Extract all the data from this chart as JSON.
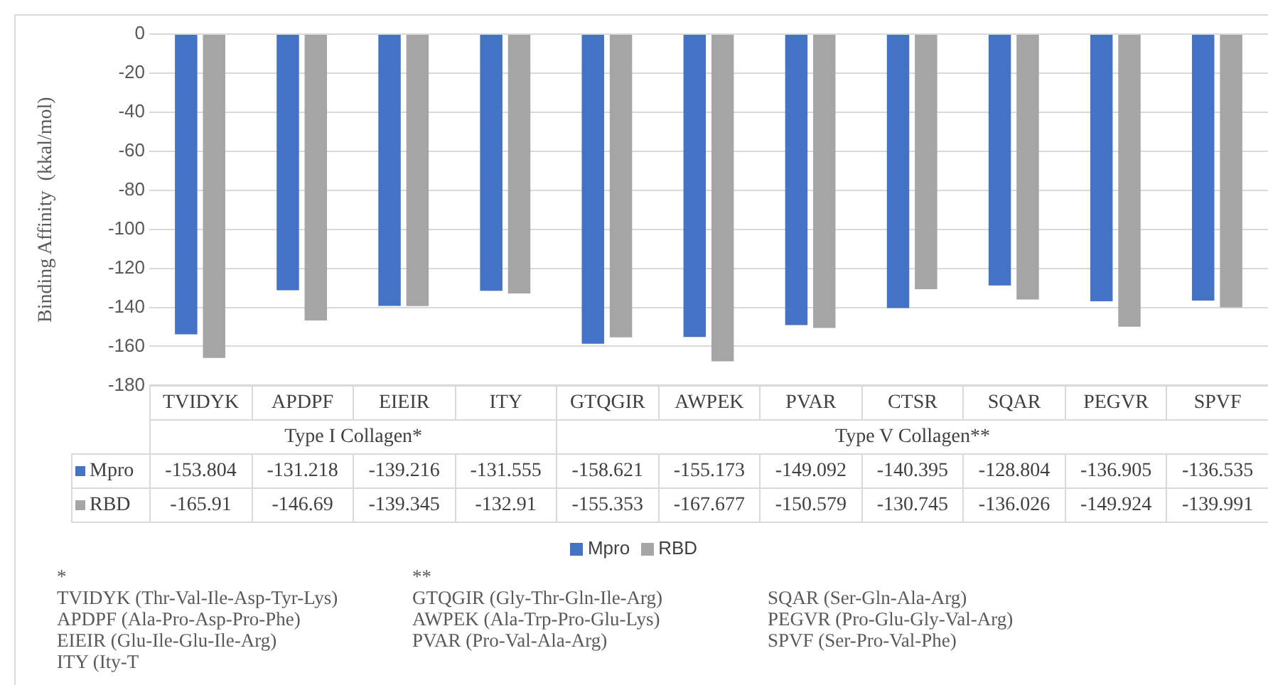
{
  "chart_data": {
    "type": "bar",
    "ylabel": "Binding Affinity  (kkal/mol)",
    "categories": [
      "TVIDYK",
      "APDPF",
      "EIEIR",
      "ITY",
      "GTQGIR",
      "AWPEK",
      "PVAR",
      "CTSR",
      "SQAR",
      "PEGVR",
      "SPVF"
    ],
    "series": [
      {
        "name": "Mpro",
        "color": "#4472c4",
        "values": [
          -153.804,
          -131.218,
          -139.216,
          -131.555,
          -158.621,
          -155.173,
          -149.092,
          -140.395,
          -128.804,
          -136.905,
          -136.535
        ]
      },
      {
        "name": "RBD",
        "color": "#a5a5a5",
        "values": [
          -165.91,
          -146.69,
          -139.345,
          -132.91,
          -155.353,
          -167.677,
          -150.579,
          -130.745,
          -136.026,
          -149.924,
          -139.991
        ]
      }
    ],
    "ylim": [
      -180,
      0
    ],
    "yticks": [
      -180,
      -160,
      -140,
      -120,
      -100,
      -80,
      -60,
      -40,
      -20,
      0
    ],
    "grid": "y",
    "legend": "bottom",
    "data_labels": true,
    "annotations": [
      "Type I Collagen*",
      "Type V Collagen**",
      "*",
      "TVIDYK (Thr-Val-Ile-Asp-Tyr-Lys)",
      "APDPF (Ala-Pro-Asp-Pro-Phe)",
      "EIEIR (Glu-Ile-Glu-Ile-Arg)",
      "ITY (Ity-T",
      "**",
      "GTQGIR (Gly-Thr-Gln-Ile-Arg)",
      "AWPEK (Ala-Trp-Pro-Glu-Lys)",
      "PVAR (Pro-Val-Ala-Arg)",
      "SQAR (Ser-Gln-Ala-Arg)",
      "PEGVR (Pro-Glu-Gly-Val-Arg)",
      "SPVF (Ser-Pro-Val-Phe)"
    ]
  }
}
